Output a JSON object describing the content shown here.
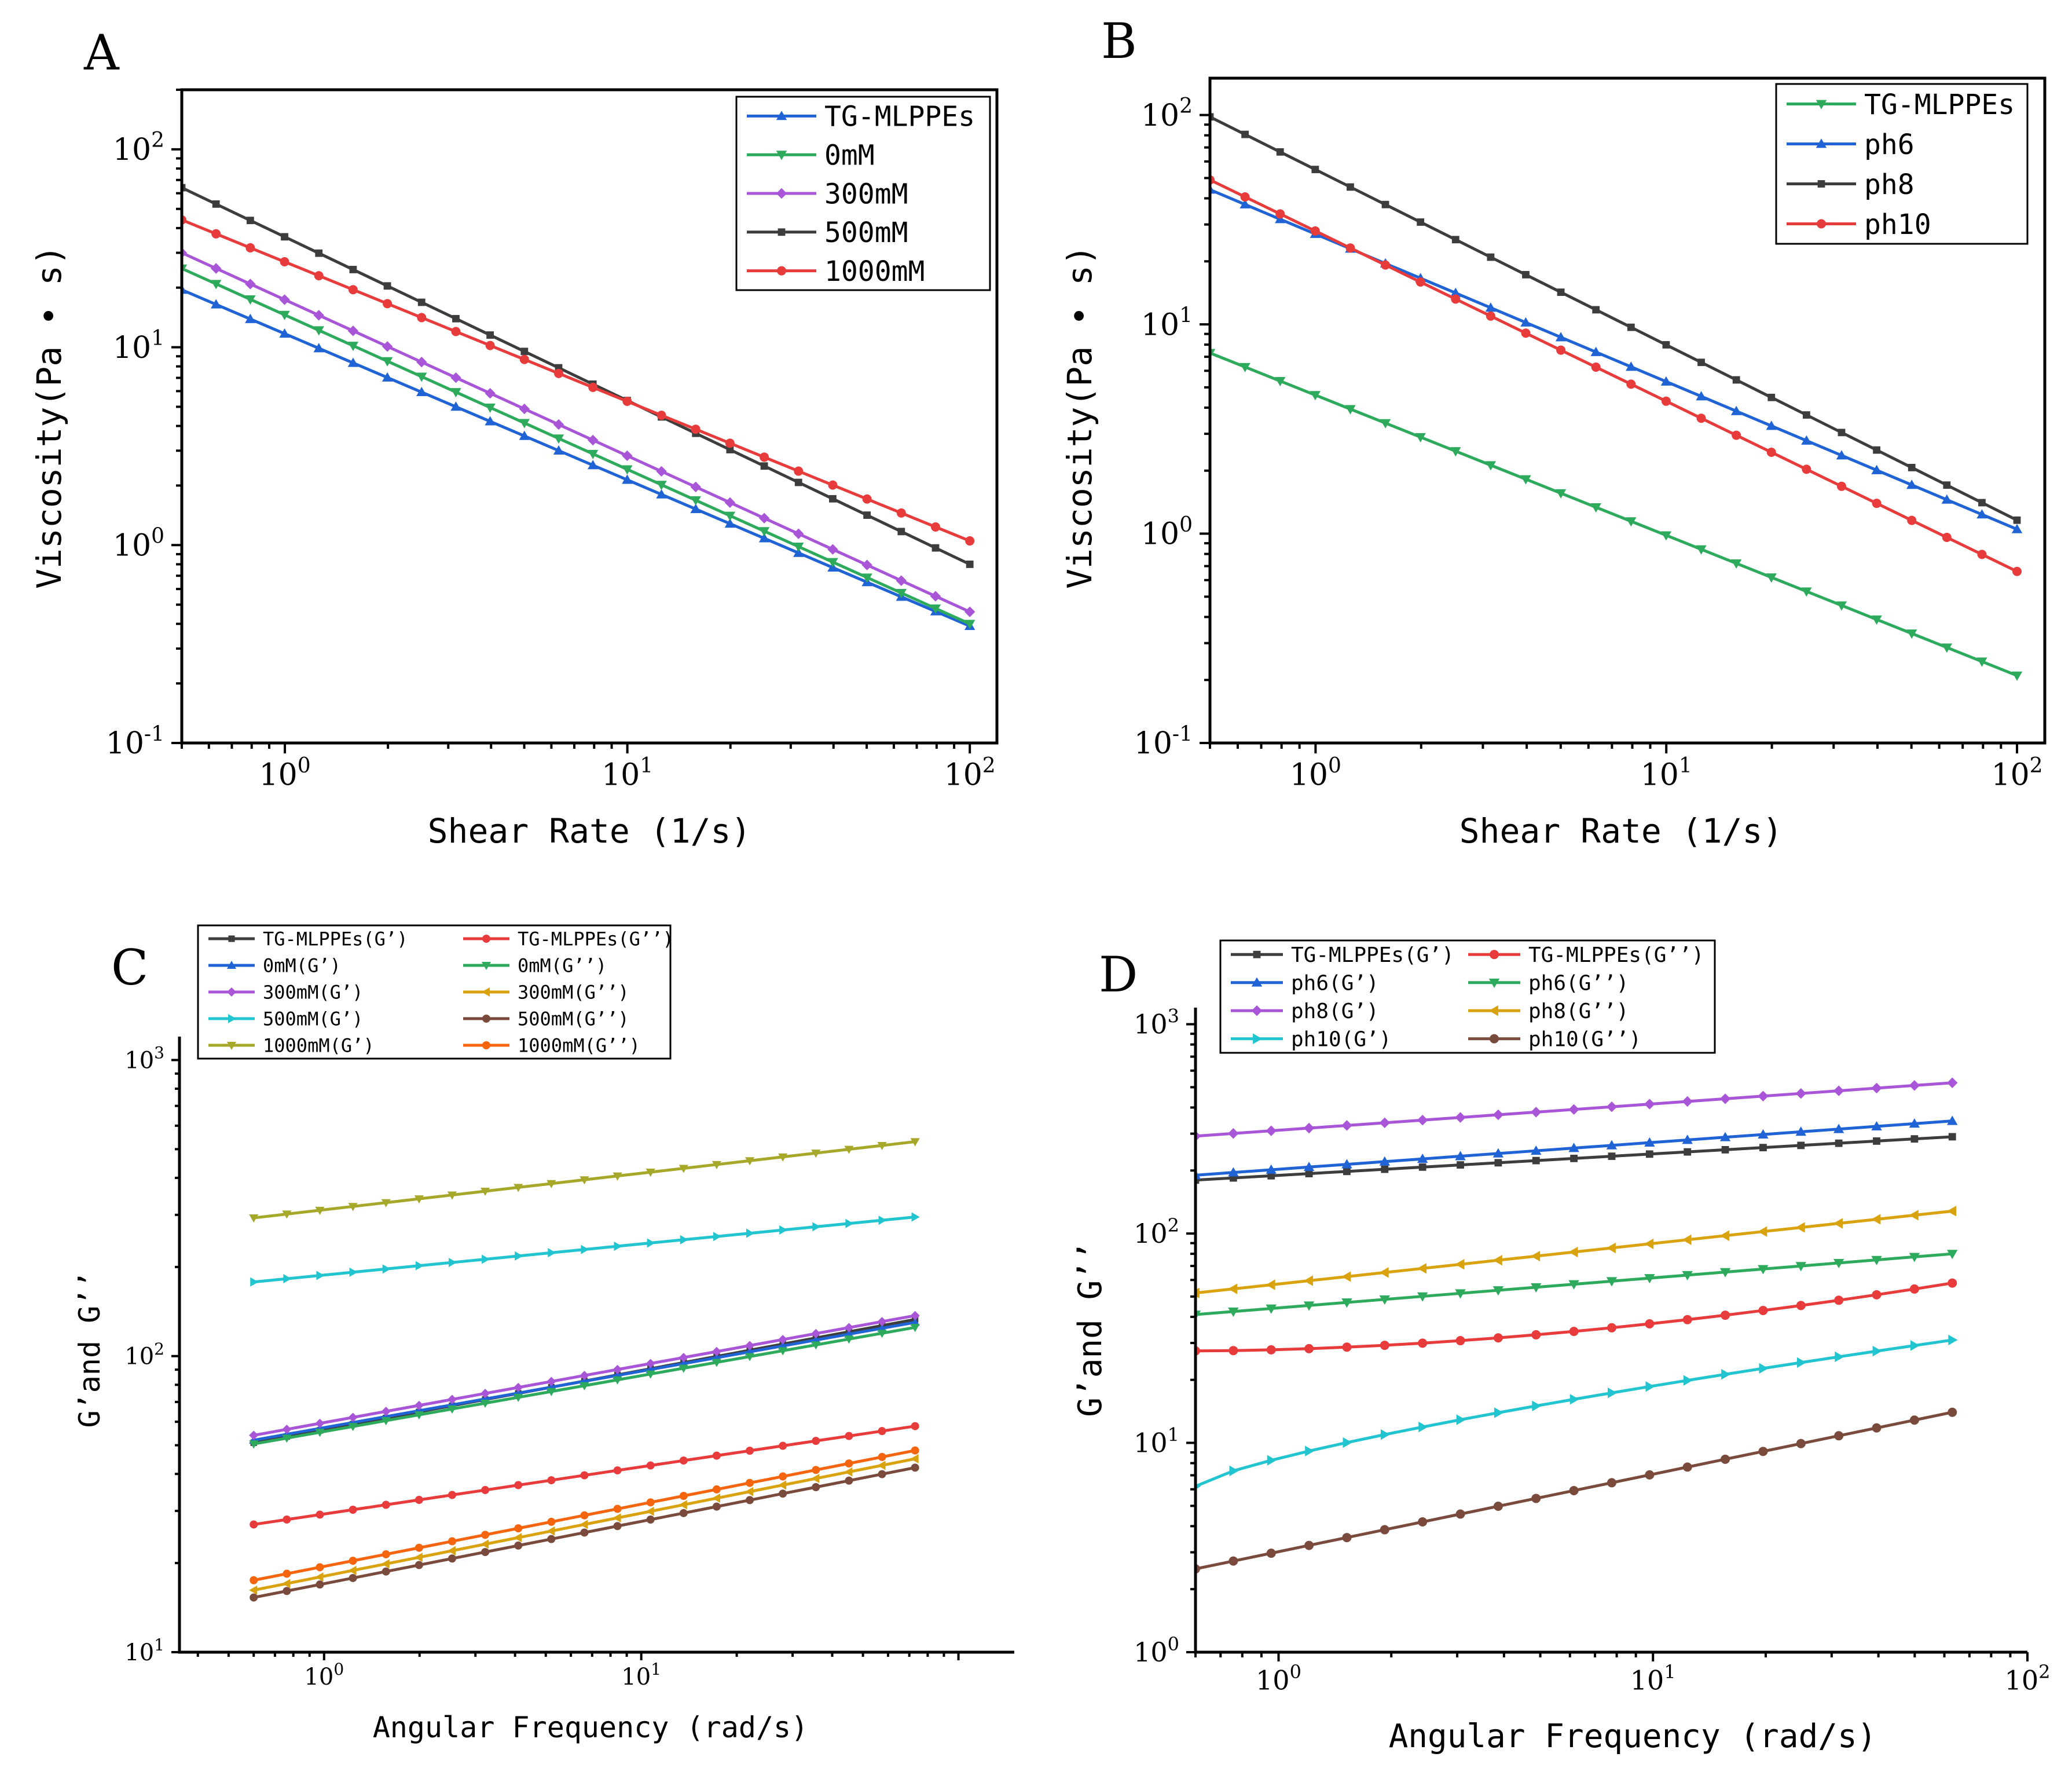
{
  "chart_data": [
    {
      "panel": "A",
      "type": "line",
      "xscale": "log",
      "yscale": "log",
      "xlabel": "Shear Rate (1/s)",
      "ylabel": "Viscosity(Pa • s)",
      "xlim": [
        0.5,
        120
      ],
      "ylim": [
        0.1,
        200
      ],
      "xticks": [
        {
          "base": "10",
          "exp": "0"
        },
        {
          "base": "10",
          "exp": "1"
        },
        {
          "base": "10",
          "exp": "2"
        }
      ],
      "yticks": [
        {
          "base": "10",
          "exp": "-1"
        },
        {
          "base": "10",
          "exp": "0"
        },
        {
          "base": "10",
          "exp": "1"
        },
        {
          "base": "10",
          "exp": "2"
        }
      ],
      "legend_position": "top-right",
      "series": [
        {
          "name": "TG-MLPPEs",
          "color": "#1f63d4",
          "marker": "triangle-up",
          "y_start": 19.5,
          "y_end": 0.39,
          "n_points": 24
        },
        {
          "name": "0mM",
          "color": "#2eaa5c",
          "marker": "triangle-down",
          "y_start": 25,
          "y_end": 0.4,
          "n_points": 24
        },
        {
          "name": "300mM",
          "color": "#a855d8",
          "marker": "diamond",
          "y_start": 30,
          "y_end": 0.46,
          "n_points": 24
        },
        {
          "name": "500mM",
          "color": "#3d3d3d",
          "marker": "square",
          "y_start": 64,
          "y_end": 0.8,
          "n_points": 24
        },
        {
          "name": "1000mM",
          "color": "#e83b3b",
          "marker": "circle",
          "y_start": 44,
          "y_end": 1.05,
          "n_points": 24
        }
      ]
    },
    {
      "panel": "B",
      "type": "line",
      "xscale": "log",
      "yscale": "log",
      "xlabel": "Shear Rate (1/s)",
      "ylabel": "Viscosity(Pa • s)",
      "xlim": [
        0.5,
        120
      ],
      "ylim": [
        0.1,
        150
      ],
      "xticks": [
        {
          "base": "10",
          "exp": "0"
        },
        {
          "base": "10",
          "exp": "1"
        },
        {
          "base": "10",
          "exp": "2"
        }
      ],
      "yticks": [
        {
          "base": "10",
          "exp": "-1"
        },
        {
          "base": "10",
          "exp": "0"
        },
        {
          "base": "10",
          "exp": "1"
        },
        {
          "base": "10",
          "exp": "2"
        }
      ],
      "legend_position": "top-right",
      "series": [
        {
          "name": "TG-MLPPEs",
          "color": "#2eaa5c",
          "marker": "triangle-down",
          "y_start": 7.3,
          "y_end": 0.21,
          "n_points": 24
        },
        {
          "name": "ph6",
          "color": "#1f63d4",
          "marker": "triangle-up",
          "y_start": 44,
          "y_end": 1.05,
          "n_points": 24
        },
        {
          "name": "ph8",
          "color": "#3d3d3d",
          "marker": "square",
          "y_start": 98,
          "y_end": 1.16,
          "n_points": 24
        },
        {
          "name": "ph10",
          "color": "#e83b3b",
          "marker": "circle",
          "y_start": 49,
          "y_end": 0.66,
          "n_points": 24
        }
      ]
    },
    {
      "panel": "C",
      "type": "line",
      "xscale": "log",
      "yscale": "log",
      "xlabel": "Angular Frequency (rad/s)",
      "ylabel": "G’and G’’",
      "xlim": [
        0.35,
        150
      ],
      "ylim": [
        10,
        1200
      ],
      "xticks": [
        {
          "base": "10",
          "exp": "0"
        },
        {
          "base": "10",
          "exp": "1"
        }
      ],
      "yticks": [
        {
          "base": "10",
          "exp": "1"
        },
        {
          "base": "10",
          "exp": "2"
        },
        {
          "base": "10",
          "exp": "3"
        }
      ],
      "legend_position": "top-left",
      "series": [
        {
          "name": "TG-MLPPEs(G’)",
          "color": "#3d3d3d",
          "marker": "square",
          "y_start": 51,
          "y_end": 133,
          "n_points": 21
        },
        {
          "name": "TG-MLPPEs(G’’)",
          "color": "#e83b3b",
          "marker": "circle",
          "y_start": 27,
          "y_end": 58,
          "n_points": 21
        },
        {
          "name": "0mM(G’)",
          "color": "#1f63d4",
          "marker": "triangle-up",
          "y_start": 52,
          "y_end": 130,
          "n_points": 21
        },
        {
          "name": "0mM(G’’)",
          "color": "#2eaa5c",
          "marker": "triangle-down",
          "y_start": 50.5,
          "y_end": 125,
          "n_points": 21
        },
        {
          "name": "300mM(G’)",
          "color": "#a855d8",
          "marker": "diamond",
          "y_start": 54,
          "y_end": 137,
          "n_points": 21
        },
        {
          "name": "300mM(G’’)",
          "color": "#d9a30f",
          "marker": "triangle-left",
          "y_start": 16.2,
          "y_end": 45,
          "n_points": 21
        },
        {
          "name": "500mM(G’)",
          "color": "#22c4cf",
          "marker": "triangle-right",
          "y_start": 178,
          "y_end": 295,
          "n_points": 21
        },
        {
          "name": "500mM(G’’)",
          "color": "#7a4b3c",
          "marker": "circle",
          "y_start": 15.3,
          "y_end": 42,
          "n_points": 21
        },
        {
          "name": "1000mM(G’)",
          "color": "#a6a82a",
          "marker": "triangle-down",
          "y_start": 293,
          "y_end": 530,
          "n_points": 21
        },
        {
          "name": "1000mM(G’’)",
          "color": "#f5650f",
          "marker": "circle",
          "y_start": 17.5,
          "y_end": 48,
          "n_points": 21
        }
      ]
    },
    {
      "panel": "D",
      "type": "line",
      "xscale": "log",
      "yscale": "log",
      "xlabel": "Angular Frequency (rad/s)",
      "ylabel": "G’and G’’",
      "xlim": [
        0.6,
        100
      ],
      "ylim": [
        1,
        1200
      ],
      "xticks": [
        {
          "base": "10",
          "exp": "0"
        },
        {
          "base": "10",
          "exp": "1"
        },
        {
          "base": "10",
          "exp": "2"
        }
      ],
      "yticks": [
        {
          "base": "10",
          "exp": "0"
        },
        {
          "base": "10",
          "exp": "1"
        },
        {
          "base": "10",
          "exp": "2"
        },
        {
          "base": "10",
          "exp": "3"
        }
      ],
      "legend_position": "top-left",
      "series": [
        {
          "name": "TG-MLPPEs(G’)",
          "color": "#3d3d3d",
          "marker": "square",
          "y_start": 180,
          "y_end": 290,
          "n_points": 21
        },
        {
          "name": "TG-MLPPEs(G’’)",
          "color": "#e83b3b",
          "marker": "circle",
          "y_start": 27.5,
          "y_end": 58,
          "n_points": 21,
          "curve": 1.8
        },
        {
          "name": "ph6(G’)",
          "color": "#1f63d4",
          "marker": "triangle-up",
          "y_start": 190,
          "y_end": 345,
          "n_points": 21
        },
        {
          "name": "ph6(G’’)",
          "color": "#2eaa5c",
          "marker": "triangle-down",
          "y_start": 41,
          "y_end": 80,
          "n_points": 21
        },
        {
          "name": "ph8(G’)",
          "color": "#a855d8",
          "marker": "diamond",
          "y_start": 292,
          "y_end": 525,
          "n_points": 21
        },
        {
          "name": "ph8(G’’)",
          "color": "#d9a30f",
          "marker": "triangle-left",
          "y_start": 52,
          "y_end": 128,
          "n_points": 21
        },
        {
          "name": "ph10(G’)",
          "color": "#22c4cf",
          "marker": "triangle-right",
          "y_start": 6.2,
          "y_end": 31,
          "n_points": 21,
          "curve": 0.75
        },
        {
          "name": "ph10(G’’)",
          "color": "#7a4b3c",
          "marker": "circle",
          "y_start": 2.5,
          "y_end": 14,
          "n_points": 21
        }
      ]
    }
  ]
}
